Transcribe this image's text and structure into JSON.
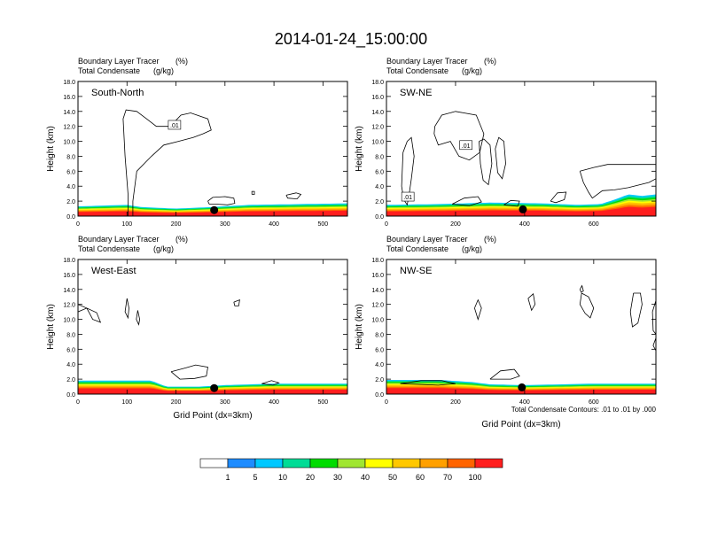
{
  "figure": {
    "title": "2014-01-24_15:00:00",
    "contour_note": "Total Condensate Contours: .01 to .01 by .000"
  },
  "chart_data": [
    {
      "type": "heatmap",
      "panel": "South-North",
      "subtitle_1": "Boundary Layer Tracer",
      "subtitle_1_unit": "(%)",
      "subtitle_2": "Total Condensate",
      "subtitle_2_unit": "(g/kg)",
      "ylabel": "Height (km)",
      "xlabel": "",
      "xlim": [
        0,
        550
      ],
      "ylim": [
        0,
        18
      ],
      "xticks": [
        "0",
        "100",
        "200",
        "300",
        "400",
        "500"
      ],
      "yticks": [
        "0.0",
        "2.0",
        "4.0",
        "6.0",
        "8.0",
        "10.0",
        "12.0",
        "14.0",
        "16.0",
        "18.0"
      ],
      "contour_label": ".01",
      "label_at": [
        197,
        12.2
      ],
      "marker": [
        278,
        0.8
      ],
      "bl_top": [
        [
          0,
          1.3
        ],
        [
          100,
          1.5
        ],
        [
          130,
          1.2
        ],
        [
          200,
          1.0
        ],
        [
          270,
          1.2
        ],
        [
          350,
          1.5
        ],
        [
          450,
          1.6
        ],
        [
          550,
          1.7
        ]
      ],
      "contours": [
        [
          [
            102,
            0
          ],
          [
            102,
            3
          ],
          [
            96,
            8
          ],
          [
            92,
            13
          ],
          [
            98,
            14.2
          ],
          [
            120,
            14
          ],
          [
            140,
            13
          ],
          [
            160,
            12
          ],
          [
            185,
            12
          ],
          [
            200,
            12.8
          ],
          [
            210,
            13.5
          ],
          [
            230,
            13.8
          ],
          [
            265,
            13
          ],
          [
            272,
            11.5
          ],
          [
            255,
            11
          ],
          [
            235,
            10.5
          ],
          [
            205,
            10
          ],
          [
            175,
            9.5
          ],
          [
            150,
            8
          ],
          [
            120,
            6
          ],
          [
            112,
            2
          ],
          [
            112,
            0
          ]
        ],
        [
          [
            265,
            2
          ],
          [
            275,
            2.5
          ],
          [
            300,
            2.6
          ],
          [
            318,
            2.4
          ],
          [
            320,
            1.7
          ],
          [
            305,
            1.5
          ],
          [
            282,
            1.6
          ],
          [
            268,
            1.6
          ],
          [
            265,
            2
          ]
        ],
        [
          [
            425,
            2.8
          ],
          [
            445,
            3.1
          ],
          [
            455,
            2.9
          ],
          [
            447,
            2.3
          ],
          [
            428,
            2.4
          ],
          [
            425,
            2.8
          ]
        ],
        [
          [
            355,
            2.9
          ],
          [
            355,
            3.3
          ],
          [
            360,
            3.3
          ],
          [
            360,
            2.9
          ],
          [
            355,
            2.9
          ]
        ]
      ]
    },
    {
      "type": "heatmap",
      "panel": "SW-NE",
      "subtitle_1": "Boundary Layer Tracer",
      "subtitle_1_unit": "(%)",
      "subtitle_2": "Total Condensate",
      "subtitle_2_unit": "(g/kg)",
      "ylabel": "Height (km)",
      "xlabel": "",
      "xlim": [
        0,
        780
      ],
      "ylim": [
        0,
        18
      ],
      "xticks": [
        "0",
        "200",
        "400",
        "600"
      ],
      "yticks": [
        "0.0",
        "2.0",
        "4.0",
        "6.0",
        "8.0",
        "10.0",
        "12.0",
        "14.0",
        "16.0",
        "18.0"
      ],
      "contour_label": ".01",
      "label_at": [
        230,
        9.5
      ],
      "label_2": ".01",
      "label_2_at": [
        62,
        2.6
      ],
      "marker": [
        395,
        0.9
      ],
      "bl_top": [
        [
          0,
          1.5
        ],
        [
          150,
          1.6
        ],
        [
          300,
          1.8
        ],
        [
          450,
          1.7
        ],
        [
          550,
          1.5
        ],
        [
          620,
          1.6
        ],
        [
          660,
          2.2
        ],
        [
          700,
          2.9
        ],
        [
          740,
          2.7
        ],
        [
          780,
          2.9
        ]
      ],
      "contours": [
        [
          [
            140,
            12
          ],
          [
            160,
            13.5
          ],
          [
            200,
            14
          ],
          [
            260,
            13.5
          ],
          [
            282,
            11
          ],
          [
            270,
            8.5
          ],
          [
            240,
            7.5
          ],
          [
            210,
            8
          ],
          [
            185,
            10
          ],
          [
            150,
            9.5
          ],
          [
            138,
            11
          ],
          [
            140,
            12
          ]
        ],
        [
          [
            48,
            8.5
          ],
          [
            60,
            10
          ],
          [
            72,
            10.5
          ],
          [
            80,
            8
          ],
          [
            72,
            5
          ],
          [
            66,
            3
          ],
          [
            60,
            1.5
          ],
          [
            50,
            2.2
          ],
          [
            44,
            4
          ],
          [
            48,
            8.5
          ]
        ],
        [
          [
            268,
            10
          ],
          [
            282,
            10.3
          ],
          [
            300,
            9.5
          ],
          [
            305,
            7
          ],
          [
            295,
            4.2
          ],
          [
            280,
            4.8
          ],
          [
            272,
            7
          ],
          [
            268,
            10
          ]
        ],
        [
          [
            315,
            9
          ],
          [
            325,
            10.5
          ],
          [
            340,
            10
          ],
          [
            345,
            7
          ],
          [
            335,
            5
          ],
          [
            322,
            5.8
          ],
          [
            315,
            9
          ]
        ],
        [
          [
            560,
            6
          ],
          [
            600,
            6.5
          ],
          [
            640,
            6.9
          ],
          [
            780,
            6.9
          ],
          [
            780,
            5
          ],
          [
            760,
            4.5
          ],
          [
            700,
            3.8
          ],
          [
            660,
            3.5
          ],
          [
            625,
            3.4
          ],
          [
            596,
            2.4
          ],
          [
            585,
            3.2
          ],
          [
            570,
            4.5
          ],
          [
            560,
            6
          ]
        ],
        [
          [
            190,
            1.6
          ],
          [
            225,
            2.4
          ],
          [
            265,
            2.6
          ],
          [
            275,
            1.9
          ],
          [
            240,
            1.4
          ],
          [
            190,
            1.6
          ]
        ],
        [
          [
            340,
            1.5
          ],
          [
            360,
            2.1
          ],
          [
            385,
            2
          ],
          [
            380,
            1.3
          ],
          [
            340,
            1.5
          ]
        ],
        [
          [
            475,
            2
          ],
          [
            495,
            3.1
          ],
          [
            520,
            3.2
          ],
          [
            515,
            2.2
          ],
          [
            490,
            1.8
          ],
          [
            475,
            2
          ]
        ]
      ]
    },
    {
      "type": "heatmap",
      "panel": "West-East",
      "subtitle_1": "Boundary Layer Tracer",
      "subtitle_1_unit": "(%)",
      "subtitle_2": "Total Condensate",
      "subtitle_2_unit": "(g/kg)",
      "ylabel": "Height (km)",
      "xlabel": "Grid Point (dx=3km)",
      "xlim": [
        0,
        550
      ],
      "ylim": [
        0,
        18
      ],
      "xticks": [
        "0",
        "100",
        "200",
        "300",
        "400",
        "500"
      ],
      "yticks": [
        "0.0",
        "2.0",
        "4.0",
        "6.0",
        "8.0",
        "10.0",
        "12.0",
        "14.0",
        "16.0",
        "18.0"
      ],
      "marker": [
        278,
        0.8
      ],
      "bl_top": [
        [
          0,
          1.8
        ],
        [
          150,
          1.8
        ],
        [
          180,
          1.0
        ],
        [
          250,
          1.0
        ],
        [
          300,
          1.2
        ],
        [
          400,
          1.4
        ],
        [
          550,
          1.4
        ]
      ],
      "contours": [
        [
          [
            0,
            12
          ],
          [
            18,
            11.5
          ],
          [
            30,
            10
          ],
          [
            46,
            9.6
          ],
          [
            38,
            10.9
          ],
          [
            18,
            11.5
          ],
          [
            0,
            11
          ]
        ],
        [
          [
            100,
            12.8
          ],
          [
            104,
            11.5
          ],
          [
            102,
            10.2
          ],
          [
            96,
            11
          ],
          [
            100,
            12.8
          ]
        ],
        [
          [
            122,
            11.2
          ],
          [
            126,
            10
          ],
          [
            124,
            9.3
          ],
          [
            119,
            10
          ],
          [
            122,
            11.2
          ]
        ],
        [
          [
            318,
            12.3
          ],
          [
            330,
            12.6
          ],
          [
            328,
            11.8
          ],
          [
            320,
            11.8
          ],
          [
            318,
            12.3
          ]
        ],
        [
          [
            190,
            3
          ],
          [
            220,
            3.5
          ],
          [
            240,
            3.9
          ],
          [
            265,
            3.6
          ],
          [
            262,
            2.4
          ],
          [
            238,
            2.1
          ],
          [
            208,
            2
          ],
          [
            190,
            3
          ]
        ],
        [
          [
            375,
            1.4
          ],
          [
            395,
            1.8
          ],
          [
            410,
            1.5
          ],
          [
            398,
            1.2
          ],
          [
            375,
            1.4
          ]
        ]
      ]
    },
    {
      "type": "heatmap",
      "panel": "NW-SE",
      "subtitle_1": "Boundary Layer Tracer",
      "subtitle_1_unit": "(%)",
      "subtitle_2": "Total Condensate",
      "subtitle_2_unit": "(g/kg)",
      "ylabel": "Height (km)",
      "xlabel": "Grid Point (dx=3km)",
      "xlim": [
        0,
        780
      ],
      "ylim": [
        0,
        18
      ],
      "xticks": [
        "0",
        "200",
        "400",
        "600"
      ],
      "yticks": [
        "0.0",
        "2.0",
        "4.0",
        "6.0",
        "8.0",
        "10.0",
        "12.0",
        "14.0",
        "16.0",
        "18.0"
      ],
      "marker": [
        392,
        0.9
      ],
      "bl_top": [
        [
          0,
          1.9
        ],
        [
          150,
          1.9
        ],
        [
          250,
          1.6
        ],
        [
          300,
          1.3
        ],
        [
          400,
          1.2
        ],
        [
          600,
          1.4
        ],
        [
          780,
          1.4
        ]
      ],
      "contours": [
        [
          [
            255,
            11.5
          ],
          [
            265,
            12.6
          ],
          [
            275,
            11.5
          ],
          [
            265,
            10
          ],
          [
            255,
            11.5
          ]
        ],
        [
          [
            410,
            12.8
          ],
          [
            425,
            13.4
          ],
          [
            430,
            12
          ],
          [
            420,
            11.2
          ],
          [
            410,
            12.8
          ]
        ],
        [
          [
            565,
            13.5
          ],
          [
            585,
            13
          ],
          [
            600,
            11.5
          ],
          [
            590,
            10.2
          ],
          [
            575,
            10.8
          ],
          [
            560,
            12
          ],
          [
            565,
            13.5
          ]
        ],
        [
          [
            715,
            13.5
          ],
          [
            735,
            13.5
          ],
          [
            740,
            12
          ],
          [
            728,
            9.5
          ],
          [
            712,
            9
          ],
          [
            706,
            11
          ],
          [
            715,
            13.5
          ]
        ],
        [
          [
            560,
            14
          ],
          [
            566,
            14.5
          ],
          [
            570,
            13.8
          ],
          [
            564,
            13.6
          ],
          [
            560,
            14
          ]
        ],
        [
          [
            780,
            12.5
          ],
          [
            770,
            11
          ],
          [
            772,
            8.5
          ],
          [
            780,
            8
          ],
          [
            780,
            12.5
          ]
        ],
        [
          [
            780,
            7.5
          ],
          [
            772,
            6.5
          ],
          [
            780,
            5.8
          ],
          [
            780,
            7.5
          ]
        ],
        [
          [
            300,
            2
          ],
          [
            330,
            3.1
          ],
          [
            370,
            3.3
          ],
          [
            385,
            2.4
          ],
          [
            360,
            2
          ],
          [
            300,
            2
          ]
        ],
        [
          [
            40,
            1.4
          ],
          [
            100,
            1.8
          ],
          [
            160,
            1.8
          ],
          [
            200,
            1.4
          ],
          [
            150,
            1.2
          ],
          [
            40,
            1.4
          ]
        ]
      ]
    }
  ],
  "colorbar": {
    "colors": [
      "#ffffff",
      "#1e8cff",
      "#00c8ff",
      "#00dc96",
      "#00dc00",
      "#a0e632",
      "#ffff00",
      "#ffc800",
      "#ffa000",
      "#ff6400",
      "#ff1e1e"
    ],
    "labels": [
      "1",
      "5",
      "10",
      "20",
      "30",
      "40",
      "50",
      "60",
      "70",
      "100"
    ]
  }
}
